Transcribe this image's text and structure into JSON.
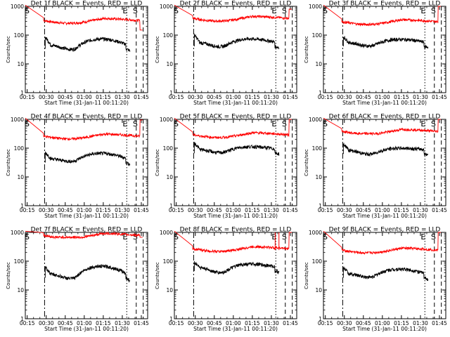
{
  "chart_data": {
    "type": "line",
    "yscale": "log",
    "xlabel": "Start Time (31-Jan-11 00:11:20)",
    "ylabel": "Counts/sec",
    "xticks": [
      "00:15",
      "00:30",
      "00:45",
      "01:00",
      "01:15",
      "01:30",
      "01:45"
    ],
    "yticks": [
      "1",
      "10",
      "100",
      "1000"
    ],
    "markers": [
      "S",
      "E",
      "S"
    ],
    "panels": [
      {
        "title": "Det 1f BLACK = Events, RED = LLD",
        "series": [
          {
            "color": "#ff0000",
            "peak": 1100,
            "level": 320,
            "dip": 150,
            "spike": 0,
            "spikes": []
          },
          {
            "color": "#000000",
            "level": 48,
            "dip": 32,
            "peak": 80,
            "start": 85,
            "hump": 0.8
          }
        ]
      },
      {
        "title": "Det 2f BLACK = Events, RED = LLD",
        "series": [
          {
            "color": "#ff0000",
            "peak": 1100,
            "level": 380,
            "dip": 170,
            "spike": 800,
            "spikes": []
          },
          {
            "color": "#000000",
            "level": 58,
            "dip": 40,
            "peak": 85,
            "start": 100,
            "hump": 0.6
          }
        ]
      },
      {
        "title": "Det 3f BLACK = Events, RED = LLD",
        "series": [
          {
            "color": "#ff0000",
            "peak": 1100,
            "level": 290,
            "dip": 200,
            "spike": 1000,
            "spikes": []
          },
          {
            "color": "#000000",
            "level": 58,
            "dip": 42,
            "peak": 80,
            "start": 85,
            "hump": 0.6
          }
        ]
      },
      {
        "title": "Det 4f BLACK = Events, RED = LLD",
        "series": [
          {
            "color": "#ff0000",
            "peak": 1100,
            "level": 260,
            "dip": 130,
            "spike": 950,
            "spikes": []
          },
          {
            "color": "#000000",
            "level": 45,
            "dip": 35,
            "peak": 75,
            "start": 70,
            "hump": 0.7
          }
        ]
      },
      {
        "title": "Det 5f BLACK = Events, RED = LLD",
        "series": [
          {
            "color": "#ff0000",
            "peak": 1100,
            "level": 290,
            "dip": 220,
            "spike": 1000,
            "spikes": []
          },
          {
            "color": "#000000",
            "level": 95,
            "dip": 70,
            "peak": 130,
            "start": 150,
            "hump": 0.5
          }
        ]
      },
      {
        "title": "Det 6f BLACK = Events, RED = LLD",
        "series": [
          {
            "color": "#ff0000",
            "peak": 1100,
            "level": 380,
            "dip": 320,
            "spike": 1000,
            "spikes": []
          },
          {
            "color": "#000000",
            "level": 90,
            "dip": 62,
            "peak": 110,
            "start": 140,
            "hump": 0.5
          }
        ]
      },
      {
        "title": "Det 7f BLACK = Events, RED = LLD",
        "series": [
          {
            "color": "#ff0000",
            "peak": 1100,
            "level": 780,
            "dip": 680,
            "spike": 0,
            "spikes": []
          },
          {
            "color": "#000000",
            "level": 38,
            "dip": 25,
            "peak": 70,
            "start": 60,
            "hump": 0.9
          }
        ]
      },
      {
        "title": "Det 8f BLACK = Events, RED = LLD",
        "series": [
          {
            "color": "#ff0000",
            "peak": 1100,
            "level": 270,
            "dip": 180,
            "spike": 1000,
            "spikes": [
              [
                "01:33",
                1000
              ],
              [
                "01:36",
                1000
              ]
            ]
          },
          {
            "color": "#000000",
            "level": 65,
            "dip": 40,
            "peak": 90,
            "start": 90,
            "hump": 0.6
          }
        ]
      },
      {
        "title": "Det 9f BLACK = Events, RED = LLD",
        "series": [
          {
            "color": "#ff0000",
            "peak": 1100,
            "level": 240,
            "dip": 160,
            "spike": 1000,
            "spikes": []
          },
          {
            "color": "#000000",
            "level": 38,
            "dip": 28,
            "peak": 60,
            "start": 60,
            "hump": 0.7
          }
        ]
      }
    ]
  }
}
